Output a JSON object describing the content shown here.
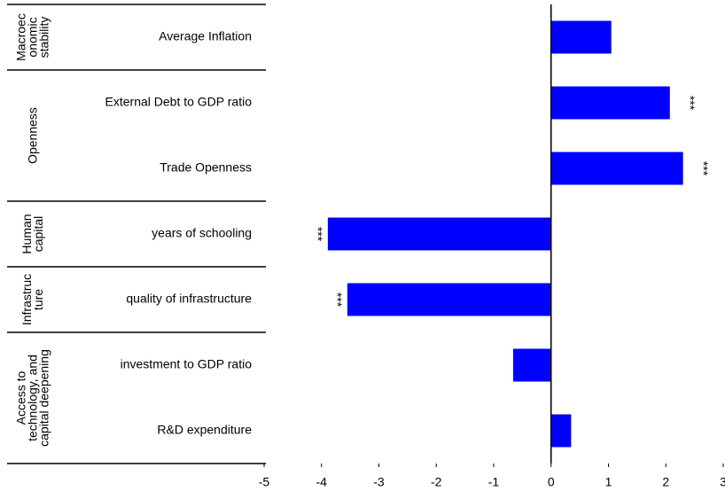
{
  "chart_data": {
    "type": "bar",
    "orientation": "horizontal",
    "color": "#0000ff",
    "xlim": [
      -5,
      3
    ],
    "xticks": [
      -5,
      -4,
      -3,
      -2,
      -1,
      0,
      1,
      2,
      3
    ],
    "groups": [
      {
        "label": [
          "Macroec",
          "onomic",
          "stability"
        ],
        "categories": [
          "Average Inflation"
        ],
        "values": [
          1.05
        ],
        "significance": [
          null
        ]
      },
      {
        "label": [
          "Openness"
        ],
        "categories": [
          "External Debt to GDP ratio",
          "Trade Openness"
        ],
        "values": [
          2.07,
          2.3
        ],
        "significance": [
          "***",
          "***"
        ]
      },
      {
        "label": [
          "Human",
          "capital"
        ],
        "categories": [
          "years of schooling"
        ],
        "values": [
          -3.89
        ],
        "significance": [
          "***"
        ]
      },
      {
        "label": [
          "Infrastruc",
          "ture"
        ],
        "categories": [
          "quality of infrastructure"
        ],
        "values": [
          -3.55
        ],
        "significance": [
          "***"
        ]
      },
      {
        "label": [
          "Access to",
          "technology, and",
          "capital deepening"
        ],
        "categories": [
          "investment to GDP ratio",
          "R&D expenditure"
        ],
        "values": [
          -0.66,
          0.35
        ],
        "significance": [
          null,
          null
        ]
      }
    ]
  }
}
